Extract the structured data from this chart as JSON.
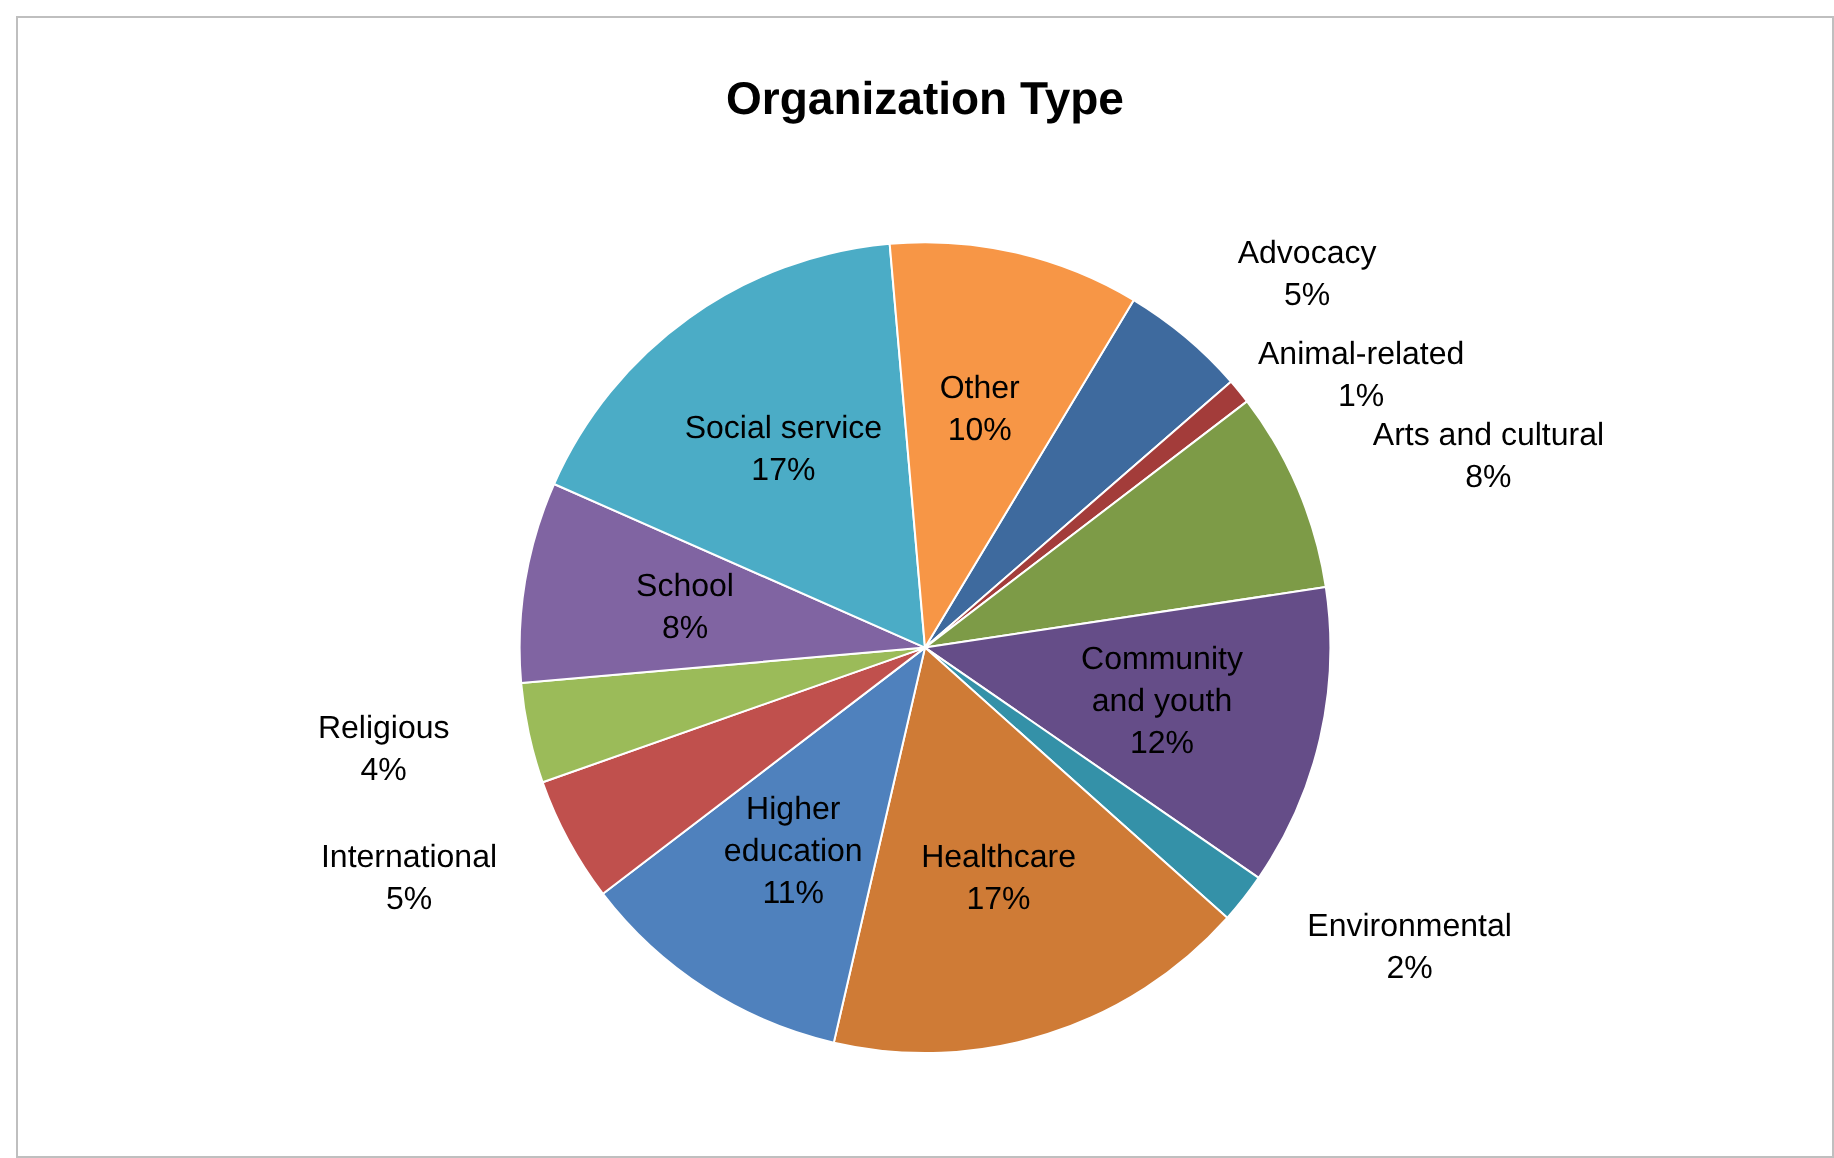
{
  "chart_data": {
    "type": "pie",
    "title": "Organization Type",
    "categories": [
      "Advocacy",
      "Animal-related",
      "Arts and cultural",
      "Community and youth",
      "Environmental",
      "Healthcare",
      "Higher education",
      "International",
      "Religious",
      "School",
      "Social service",
      "Other"
    ],
    "values": [
      5,
      1,
      8,
      12,
      2,
      17,
      11,
      5,
      4,
      8,
      17,
      10
    ],
    "colors": [
      "#3e6a9e",
      "#a33c3a",
      "#7d9b47",
      "#654d88",
      "#3491a8",
      "#cf7b36",
      "#4f81bd",
      "#c0504d",
      "#9bbb59",
      "#8064a2",
      "#4bacc6",
      "#f79646"
    ],
    "value_labels": [
      "5%",
      "1%",
      "8%",
      "12%",
      "2%",
      "17%",
      "11%",
      "5%",
      "4%",
      "8%",
      "17%",
      "10%"
    ],
    "legend": false
  }
}
